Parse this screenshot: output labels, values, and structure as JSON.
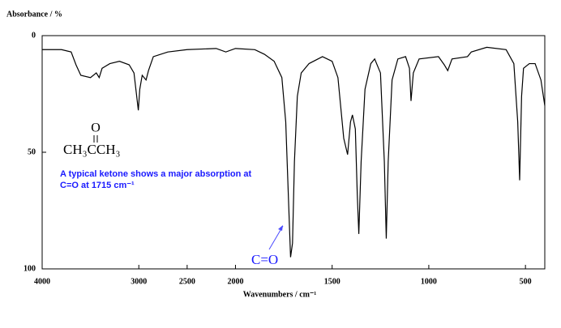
{
  "chart_data": {
    "type": "line",
    "y_axis_title": "Absorbance / %",
    "x_axis_title": "Wavenumbers / cm⁻¹",
    "formula": "CH₃CCH₃",
    "formula_oxygen": "O",
    "annotation": [
      "A typical ketone shows a major absorption at",
      "C=O at 1715 cm⁻¹"
    ],
    "arrow_label": "C=O",
    "color": "#000000",
    "x": [
      4000,
      3800,
      3700,
      3650,
      3600,
      3500,
      3440,
      3410,
      3380,
      3300,
      3200,
      3100,
      3050,
      3005,
      2990,
      2965,
      2925,
      2900,
      2850,
      2700,
      2500,
      2200,
      2100,
      2000,
      1900,
      1850,
      1800,
      1760,
      1740,
      1725,
      1715,
      1705,
      1695,
      1680,
      1660,
      1620,
      1550,
      1500,
      1470,
      1440,
      1420,
      1405,
      1395,
      1380,
      1370,
      1362,
      1350,
      1330,
      1300,
      1280,
      1250,
      1230,
      1220,
      1210,
      1190,
      1160,
      1120,
      1100,
      1092,
      1080,
      1050,
      950,
      920,
      902,
      880,
      800,
      780,
      700,
      600,
      560,
      540,
      530,
      520,
      510,
      480,
      450,
      420,
      400
    ],
    "values": [
      6,
      6,
      7,
      12.5,
      17,
      18,
      16,
      18,
      14,
      12,
      11,
      12.5,
      16,
      32,
      23,
      17,
      19,
      15,
      9,
      7,
      6,
      5.5,
      7,
      5.5,
      6,
      8,
      11,
      18,
      37,
      72,
      95,
      89,
      54,
      26,
      16,
      12,
      9,
      11,
      18,
      44,
      51,
      37,
      34,
      40,
      68,
      85,
      54,
      23,
      12,
      10,
      16,
      54,
      87,
      54,
      19,
      10,
      9,
      14,
      28,
      16,
      10,
      9,
      12.5,
      15,
      10,
      9,
      7,
      5,
      6,
      12,
      37,
      62,
      26,
      14,
      12,
      12,
      19,
      30
    ],
    "xlim": [
      4000,
      400
    ],
    "x_scale_change": {
      "at": 2000,
      "factor": 2
    },
    "xticks": [
      4000,
      3000,
      2500,
      2000,
      1500,
      1000,
      500
    ],
    "ylim": [
      0,
      100
    ],
    "yticks": [
      0,
      50,
      100
    ]
  }
}
